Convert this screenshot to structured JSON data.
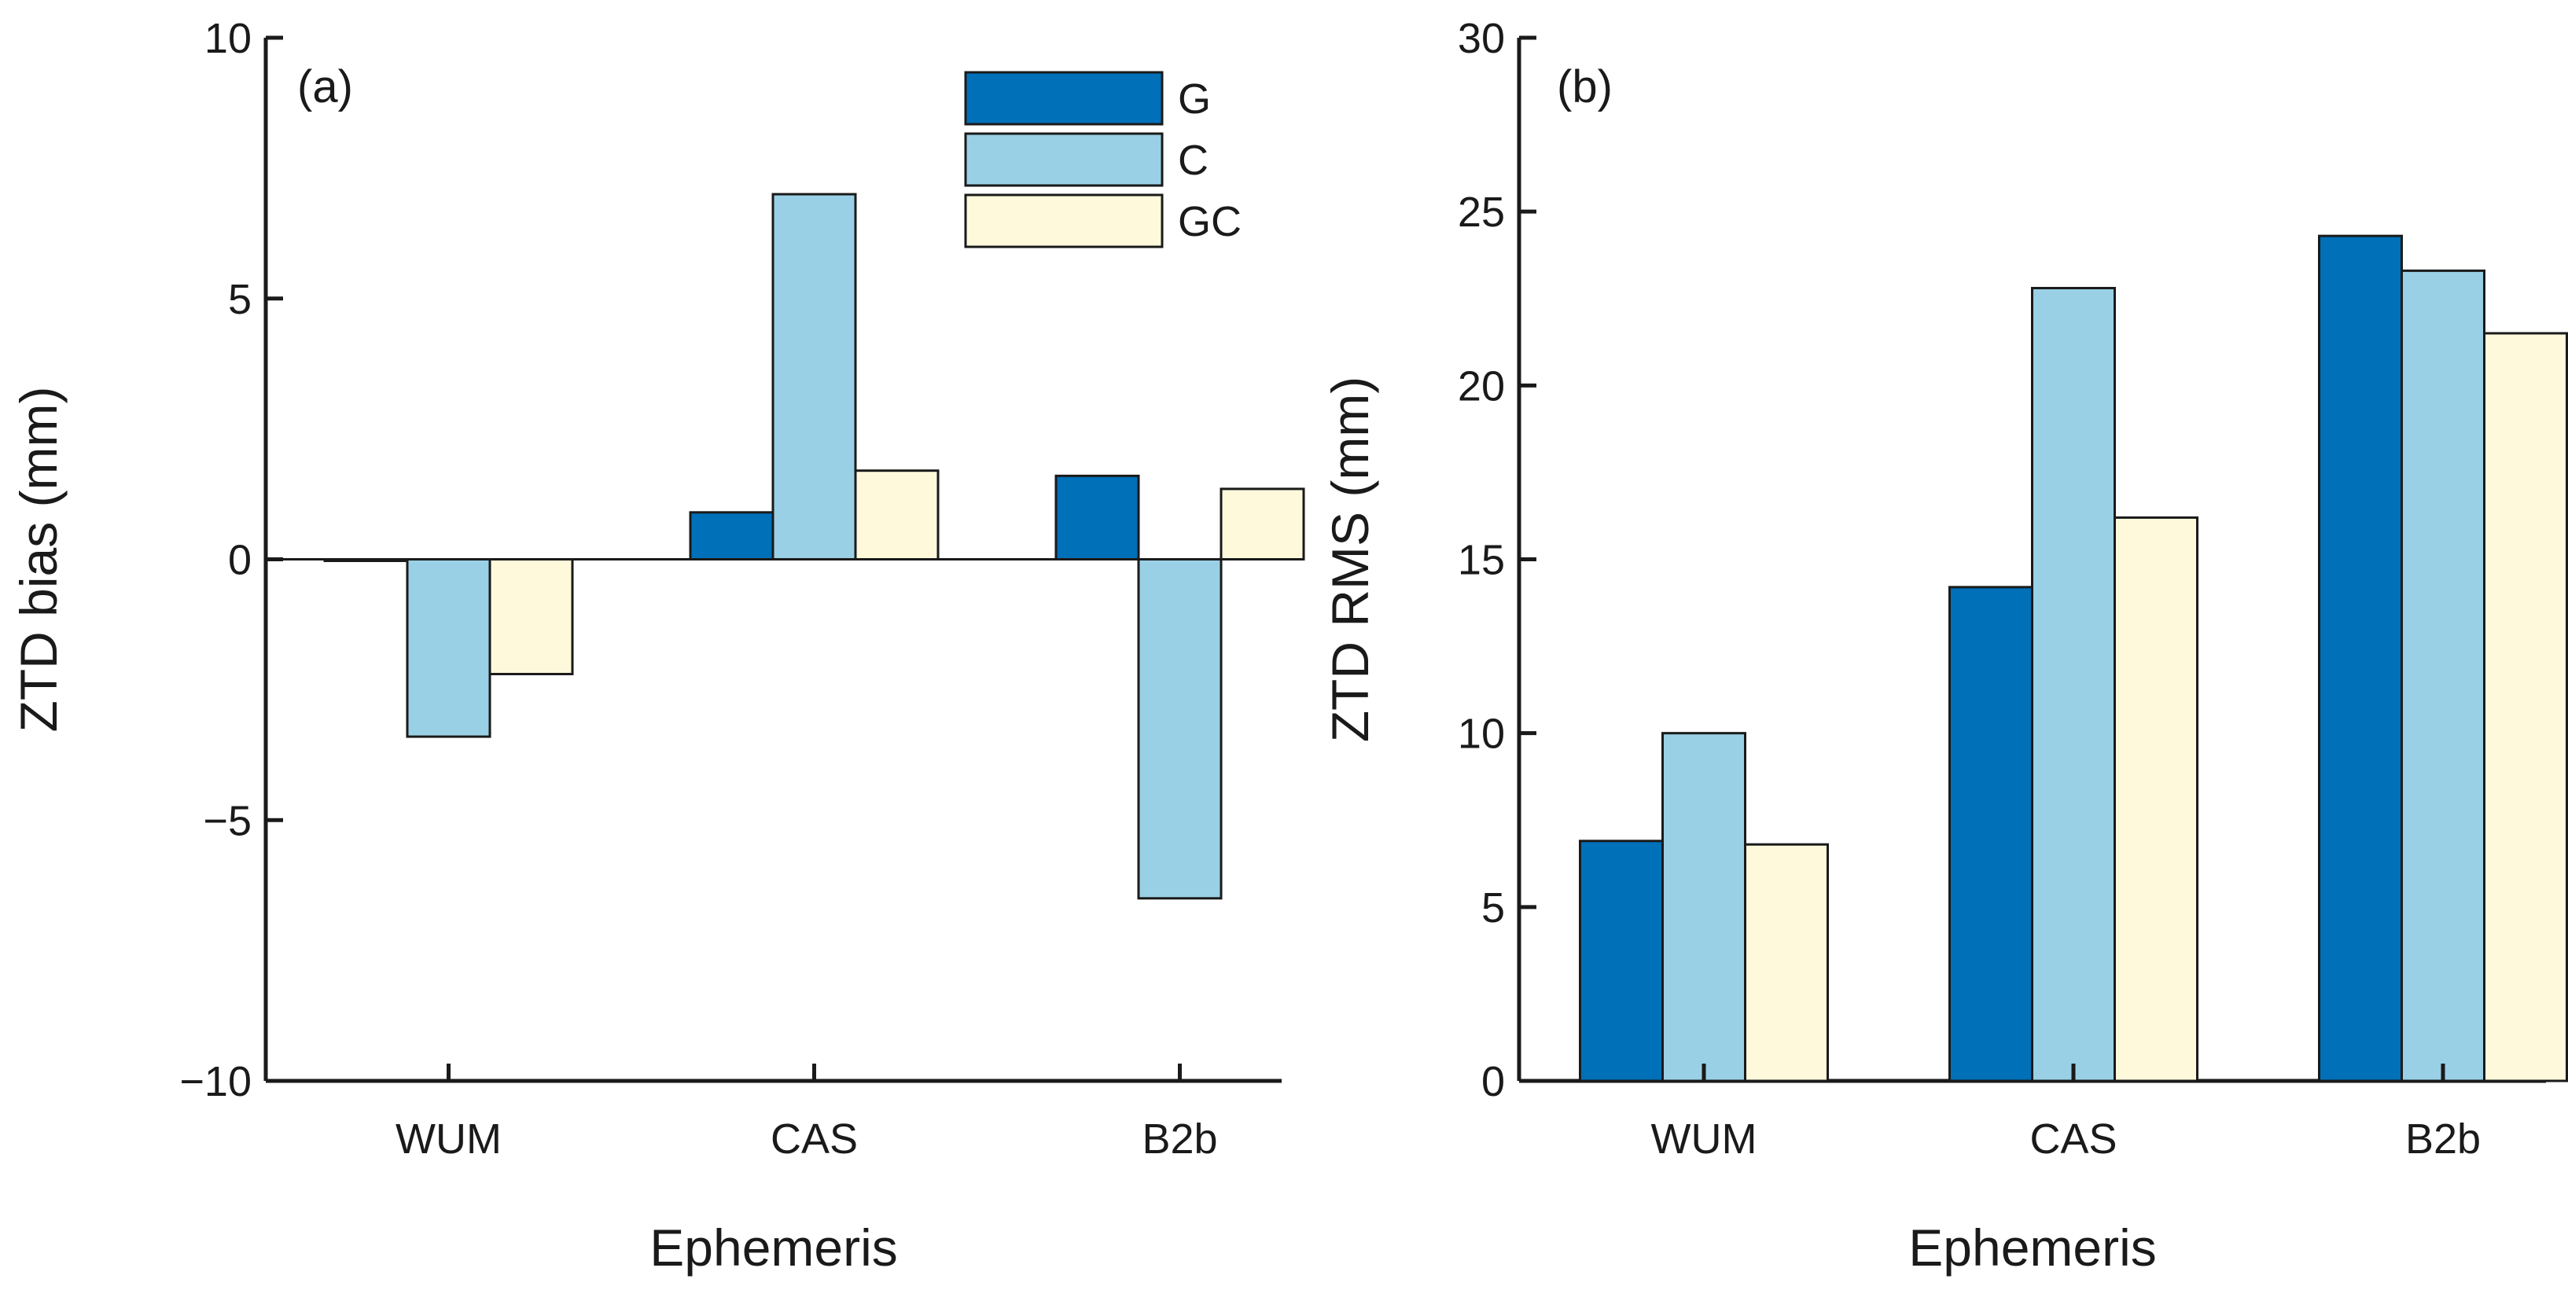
{
  "chart_data": [
    {
      "type": "bar",
      "panel_label": "(a)",
      "categories": [
        "WUM",
        "CAS",
        "B2b"
      ],
      "series": [
        {
          "name": "G",
          "values": [
            0.0,
            0.9,
            1.6
          ]
        },
        {
          "name": "C",
          "values": [
            -3.4,
            7.0,
            -6.5
          ]
        },
        {
          "name": "GC",
          "values": [
            -2.2,
            1.7,
            1.35
          ]
        }
      ],
      "xlabel": "Ephemeris",
      "ylabel": "ZTD bias (mm)",
      "ylim": [
        -10,
        10
      ],
      "yticks": [
        -10,
        -5,
        0,
        5,
        10
      ],
      "ytick_labels": [
        "−10",
        "−5",
        "0",
        "5",
        "10"
      ],
      "legend_position": "top-right",
      "legend": [
        "G",
        "C",
        "GC"
      ]
    },
    {
      "type": "bar",
      "panel_label": "(b)",
      "categories": [
        "WUM",
        "CAS",
        "B2b"
      ],
      "series": [
        {
          "name": "G",
          "values": [
            6.9,
            14.2,
            24.3
          ]
        },
        {
          "name": "C",
          "values": [
            10.0,
            22.8,
            23.3
          ]
        },
        {
          "name": "GC",
          "values": [
            6.8,
            16.2,
            21.5
          ]
        }
      ],
      "xlabel": "Ephemeris",
      "ylabel": "ZTD RMS (mm)",
      "ylim": [
        0,
        30
      ],
      "yticks": [
        0,
        5,
        10,
        15,
        20,
        25,
        30
      ],
      "ytick_labels": [
        "0",
        "5",
        "10",
        "15",
        "20",
        "25",
        "30"
      ]
    }
  ],
  "colors": {
    "G": "#0070b8",
    "C": "#9ad0e5",
    "GC": "#fff9dc"
  }
}
